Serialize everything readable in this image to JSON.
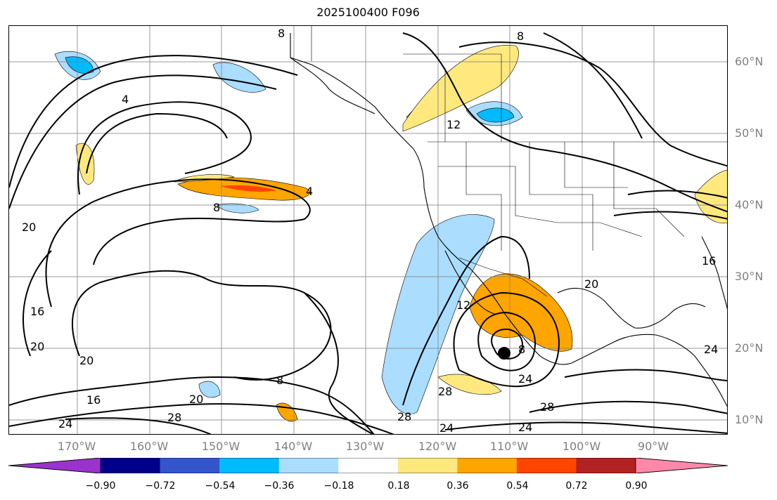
{
  "title": "2025100400 F096",
  "map": {
    "lat_ticks": [
      "60°N",
      "50°N",
      "40°N",
      "30°N",
      "20°N",
      "10°N"
    ],
    "lon_ticks": [
      "170°W",
      "160°W",
      "150°W",
      "140°W",
      "130°W",
      "120°W",
      "110°W",
      "100°W",
      "90°W"
    ],
    "storm_marker": "black-dot",
    "contour_labels": [
      "8",
      "4",
      "8",
      "12",
      "4",
      "8",
      "20",
      "16",
      "20",
      "20",
      "16",
      "24",
      "28",
      "20",
      "8",
      "12",
      "8",
      "24",
      "28",
      "28",
      "24",
      "24",
      "20",
      "24",
      "28",
      "16"
    ],
    "colors": {
      "coast": "#000000",
      "contour": "#000000",
      "grid": "#808080"
    }
  },
  "colorbar": {
    "ticks": [
      "−0.90",
      "−0.72",
      "−0.54",
      "−0.36",
      "−0.18",
      "0.18",
      "0.36",
      "0.54",
      "0.72",
      "0.90"
    ],
    "colors": [
      "#9933cc",
      "#000088",
      "#3355cc",
      "#00bbff",
      "#aaddff",
      "#ffffff",
      "#ffe97f",
      "#ffa500",
      "#ff4500",
      "#b22222",
      "#ff88aa"
    ]
  }
}
